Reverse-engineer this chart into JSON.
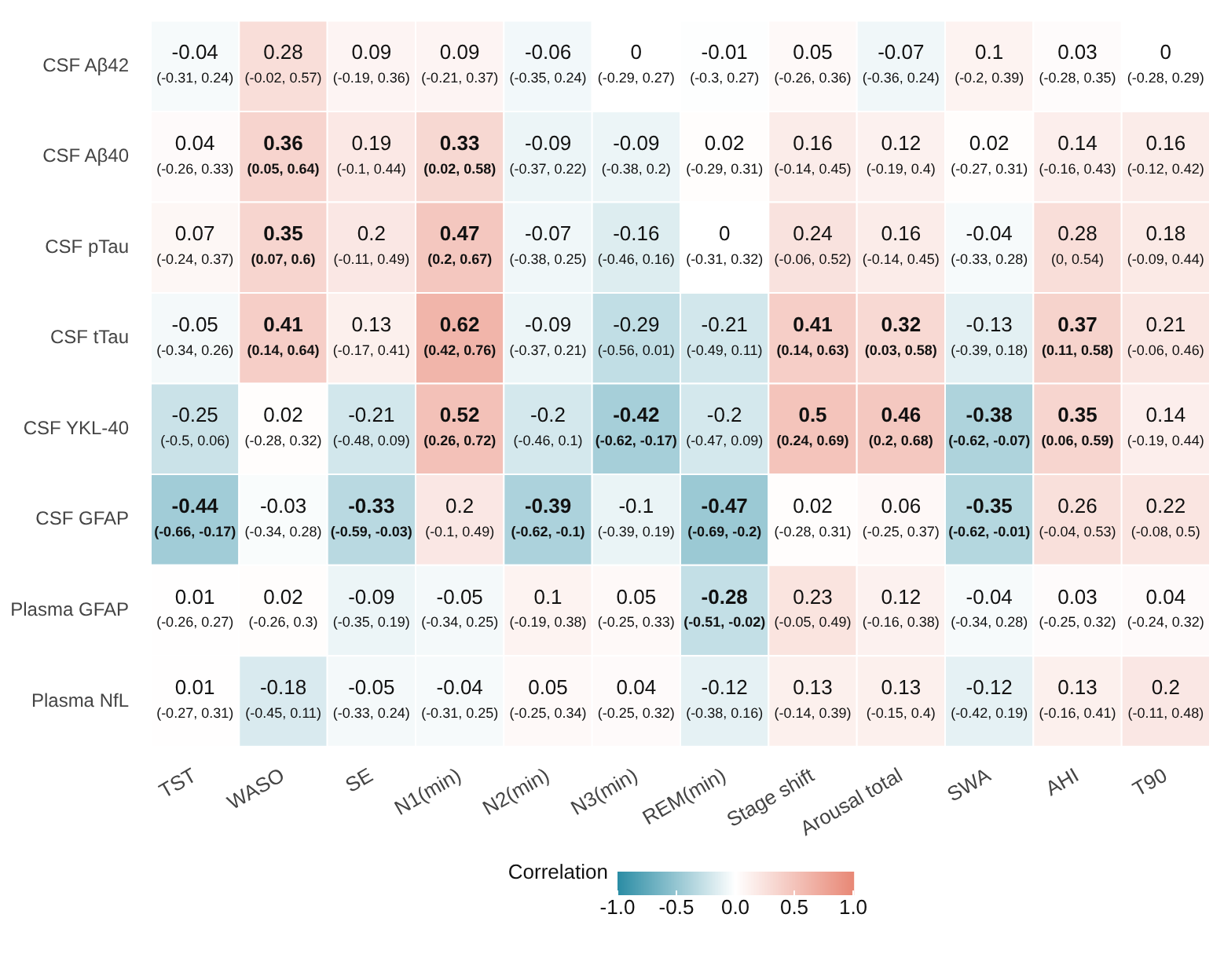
{
  "chart_data": {
    "type": "heatmap",
    "clabel": "Correlation",
    "clim": [
      -1,
      1
    ],
    "cticks": [
      {
        "value": -1,
        "label": "-1.0"
      },
      {
        "value": -0.5,
        "label": "-0.5"
      },
      {
        "value": 0,
        "label": "0.0"
      },
      {
        "value": 0.5,
        "label": "0.5"
      },
      {
        "value": 1,
        "label": "1.0"
      }
    ],
    "categories": [
      "TST",
      "WASO",
      "SE",
      "N1(min)",
      "N2(min)",
      "N3(min)",
      "REM(min)",
      "Stage shift",
      "Arousal total",
      "SWA",
      "AHI",
      "T90"
    ],
    "y_categories": [
      "CSF Aβ42",
      "CSF Aβ40",
      "CSF pTau",
      "CSF tTau",
      "CSF YKL-40",
      "CSF GFAP",
      "Plasma GFAP",
      "Plasma NfL"
    ],
    "cells": [
      [
        -0.04,
        0.28,
        0.09,
        0.09,
        -0.06,
        0,
        -0.01,
        0.05,
        -0.07,
        0.1,
        0.03,
        0
      ],
      [
        0.04,
        0.36,
        0.19,
        0.33,
        -0.09,
        -0.09,
        0.02,
        0.16,
        0.12,
        0.02,
        0.14,
        0.16
      ],
      [
        0.07,
        0.35,
        0.2,
        0.47,
        -0.07,
        -0.16,
        0,
        0.24,
        0.16,
        -0.04,
        0.28,
        0.18
      ],
      [
        -0.05,
        0.41,
        0.13,
        0.62,
        -0.09,
        -0.29,
        -0.21,
        0.41,
        0.32,
        -0.13,
        0.37,
        0.21
      ],
      [
        -0.25,
        0.02,
        -0.21,
        0.52,
        -0.2,
        -0.42,
        -0.2,
        0.5,
        0.46,
        -0.38,
        0.35,
        0.14
      ],
      [
        -0.44,
        -0.03,
        -0.33,
        0.2,
        -0.39,
        -0.1,
        -0.47,
        0.02,
        0.06,
        -0.35,
        0.26,
        0.22
      ],
      [
        0.01,
        0.02,
        -0.09,
        -0.05,
        0.1,
        0.05,
        -0.28,
        0.23,
        0.12,
        -0.04,
        0.03,
        0.04
      ],
      [
        0.01,
        -0.18,
        -0.05,
        -0.04,
        0.05,
        0.04,
        -0.12,
        0.13,
        0.13,
        -0.12,
        0.13,
        0.2
      ]
    ],
    "cell_labels": [
      [
        "-0.04\n(-0.31, 0.24)",
        "0.28\n(-0.02, 0.57)",
        "0.09\n(-0.19, 0.36)",
        "0.09\n(-0.21, 0.37)",
        "-0.06\n(-0.35, 0.24)",
        "0\n(-0.29, 0.27)",
        "-0.01\n(-0.3, 0.27)",
        "0.05\n(-0.26, 0.36)",
        "-0.07\n(-0.36, 0.24)",
        "0.1\n(-0.2, 0.39)",
        "0.03\n(-0.28, 0.35)",
        "0\n(-0.28, 0.29)"
      ],
      [
        "0.04\n(-0.26, 0.33)",
        "0.36\n(0.05, 0.64)",
        "0.19\n(-0.1, 0.44)",
        "0.33\n(0.02, 0.58)",
        "-0.09\n(-0.37, 0.22)",
        "-0.09\n(-0.38, 0.2)",
        "0.02\n(-0.29, 0.31)",
        "0.16\n(-0.14, 0.45)",
        "0.12\n(-0.19, 0.4)",
        "0.02\n(-0.27, 0.31)",
        "0.14\n(-0.16, 0.43)",
        "0.16\n(-0.12, 0.42)"
      ],
      [
        "0.07\n(-0.24, 0.37)",
        "0.35\n(0.07, 0.6)",
        "0.2\n(-0.11, 0.49)",
        "0.47\n(0.2, 0.67)",
        "-0.07\n(-0.38, 0.25)",
        "-0.16\n(-0.46, 0.16)",
        "0\n(-0.31, 0.32)",
        "0.24\n(-0.06, 0.52)",
        "0.16\n(-0.14, 0.45)",
        "-0.04\n(-0.33, 0.28)",
        "0.28\n(0, 0.54)",
        "0.18\n(-0.09, 0.44)"
      ],
      [
        "-0.05\n(-0.34, 0.26)",
        "0.41\n(0.14, 0.64)",
        "0.13\n(-0.17, 0.41)",
        "0.62\n(0.42, 0.76)",
        "-0.09\n(-0.37, 0.21)",
        "-0.29\n(-0.56, 0.01)",
        "-0.21\n(-0.49, 0.11)",
        "0.41\n(0.14, 0.63)",
        "0.32\n(0.03, 0.58)",
        "-0.13\n(-0.39, 0.18)",
        "0.37\n(0.11, 0.58)",
        "0.21\n(-0.06, 0.46)"
      ],
      [
        "-0.25\n(-0.5, 0.06)",
        "0.02\n(-0.28, 0.32)",
        "-0.21\n(-0.48, 0.09)",
        "0.52\n(0.26, 0.72)",
        "-0.2\n(-0.46, 0.1)",
        "-0.42\n(-0.62, -0.17)",
        "-0.2\n(-0.47, 0.09)",
        "0.5\n(0.24, 0.69)",
        "0.46\n(0.2, 0.68)",
        "-0.38\n(-0.62, -0.07)",
        "0.35\n(0.06, 0.59)",
        "0.14\n(-0.19, 0.44)"
      ],
      [
        "-0.44\n(-0.66, -0.17)",
        "-0.03\n(-0.34, 0.28)",
        "-0.33\n(-0.59, -0.03)",
        "0.2\n(-0.1, 0.49)",
        "-0.39\n(-0.62, -0.1)",
        "-0.1\n(-0.39, 0.19)",
        "-0.47\n(-0.69, -0.2)",
        "0.02\n(-0.28, 0.31)",
        "0.06\n(-0.25, 0.37)",
        "-0.35\n(-0.62, -0.01)",
        "0.26\n(-0.04, 0.53)",
        "0.22\n(-0.08, 0.5)"
      ],
      [
        "0.01\n(-0.26, 0.27)",
        "0.02\n(-0.26, 0.3)",
        "-0.09\n(-0.35, 0.19)",
        "-0.05\n(-0.34, 0.25)",
        "0.1\n(-0.19, 0.38)",
        "0.05\n(-0.25, 0.33)",
        "-0.28\n(-0.51, -0.02)",
        "0.23\n(-0.05, 0.49)",
        "0.12\n(-0.16, 0.38)",
        "-0.04\n(-0.34, 0.28)",
        "0.03\n(-0.25, 0.32)",
        "0.04\n(-0.24, 0.32)"
      ],
      [
        "0.01\n(-0.27, 0.31)",
        "-0.18\n(-0.45, 0.11)",
        "-0.05\n(-0.33, 0.24)",
        "-0.04\n(-0.31, 0.25)",
        "0.05\n(-0.25, 0.34)",
        "0.04\n(-0.25, 0.32)",
        "-0.12\n(-0.38, 0.16)",
        "0.13\n(-0.14, 0.39)",
        "0.13\n(-0.15, 0.4)",
        "-0.12\n(-0.42, 0.19)",
        "0.13\n(-0.16, 0.41)",
        "0.2\n(-0.11, 0.48)"
      ]
    ]
  }
}
